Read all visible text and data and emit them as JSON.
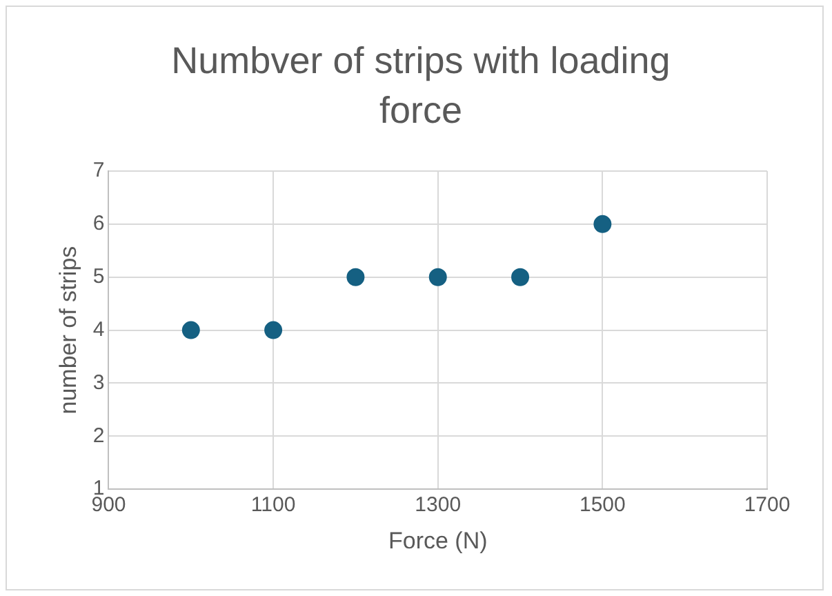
{
  "chart_data": {
    "type": "scatter",
    "title": "Numbver of strips with loading force",
    "xlabel": "Force (N)",
    "ylabel": "number of strips",
    "x": [
      1000,
      1100,
      1200,
      1300,
      1400,
      1500
    ],
    "series": [
      {
        "color": "#156082",
        "values": [
          4,
          4,
          5,
          5,
          5,
          6
        ]
      }
    ],
    "xlim": [
      900,
      1700
    ],
    "xticks": [
      900,
      1100,
      1300,
      1500,
      1700
    ],
    "ylim": [
      1,
      7
    ],
    "yticks": [
      1,
      2,
      3,
      4,
      5,
      6,
      7
    ],
    "grid": true,
    "marker": "circle",
    "legend": false
  }
}
